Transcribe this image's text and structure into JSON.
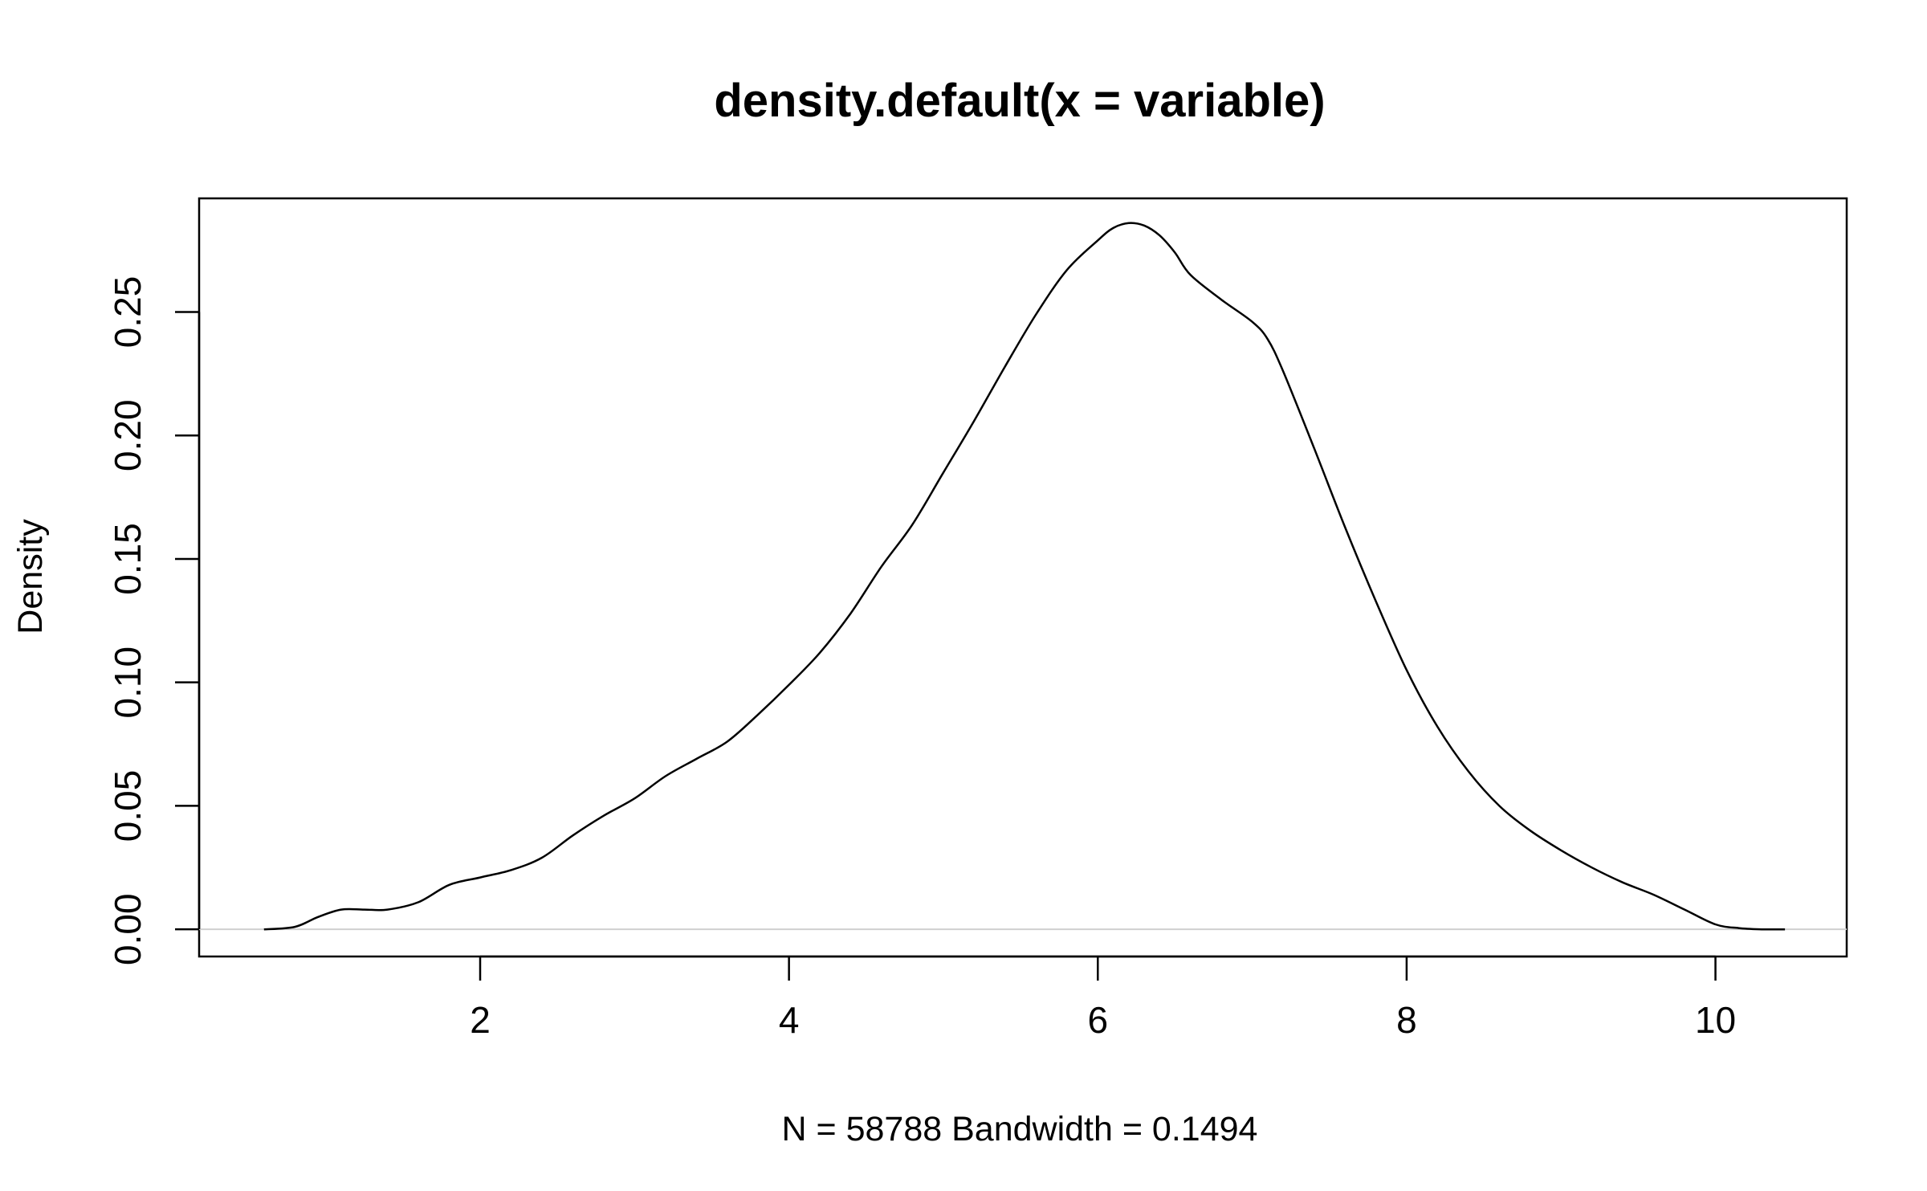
{
  "chart_data": {
    "type": "line",
    "title": "density.default(x = variable)",
    "xlabel": "N = 58788   Bandwidth = 0.1494",
    "ylabel": "Density",
    "xlim": [
      0.18,
      10.85
    ],
    "ylim": [
      -0.011,
      0.296
    ],
    "x_ticks": [
      2,
      4,
      6,
      8,
      10
    ],
    "x_tick_labels": [
      "2",
      "4",
      "6",
      "8",
      "10"
    ],
    "y_ticks": [
      0.0,
      0.05,
      0.1,
      0.15,
      0.2,
      0.25
    ],
    "y_tick_labels": [
      "0.00",
      "0.05",
      "0.10",
      "0.15",
      "0.20",
      "0.25"
    ],
    "zero_line": true,
    "grid": false,
    "colors": {
      "line": "#000000",
      "zero_line": "#d0d0d0",
      "frame": "#000000"
    },
    "series": [
      {
        "x": [
          0.6,
          0.8,
          0.95,
          1.1,
          1.25,
          1.4,
          1.6,
          1.8,
          2.0,
          2.2,
          2.4,
          2.6,
          2.8,
          3.0,
          3.2,
          3.4,
          3.6,
          3.8,
          4.0,
          4.2,
          4.4,
          4.6,
          4.8,
          5.0,
          5.2,
          5.4,
          5.6,
          5.8,
          6.0,
          6.1,
          6.2,
          6.3,
          6.4,
          6.5,
          6.6,
          6.8,
          7.0,
          7.1,
          7.2,
          7.4,
          7.6,
          7.8,
          8.0,
          8.2,
          8.4,
          8.6,
          8.8,
          9.0,
          9.2,
          9.4,
          9.6,
          9.8,
          10.0,
          10.15,
          10.3,
          10.45
        ],
        "y": [
          0.0,
          0.001,
          0.005,
          0.008,
          0.008,
          0.008,
          0.011,
          0.018,
          0.021,
          0.024,
          0.029,
          0.038,
          0.046,
          0.053,
          0.062,
          0.069,
          0.076,
          0.087,
          0.099,
          0.112,
          0.128,
          0.147,
          0.164,
          0.185,
          0.206,
          0.228,
          0.249,
          0.267,
          0.279,
          0.284,
          0.286,
          0.285,
          0.281,
          0.274,
          0.265,
          0.255,
          0.246,
          0.239,
          0.226,
          0.195,
          0.163,
          0.133,
          0.105,
          0.082,
          0.064,
          0.05,
          0.04,
          0.032,
          0.025,
          0.019,
          0.014,
          0.008,
          0.002,
          0.0005,
          0.0,
          0.0
        ]
      }
    ]
  }
}
